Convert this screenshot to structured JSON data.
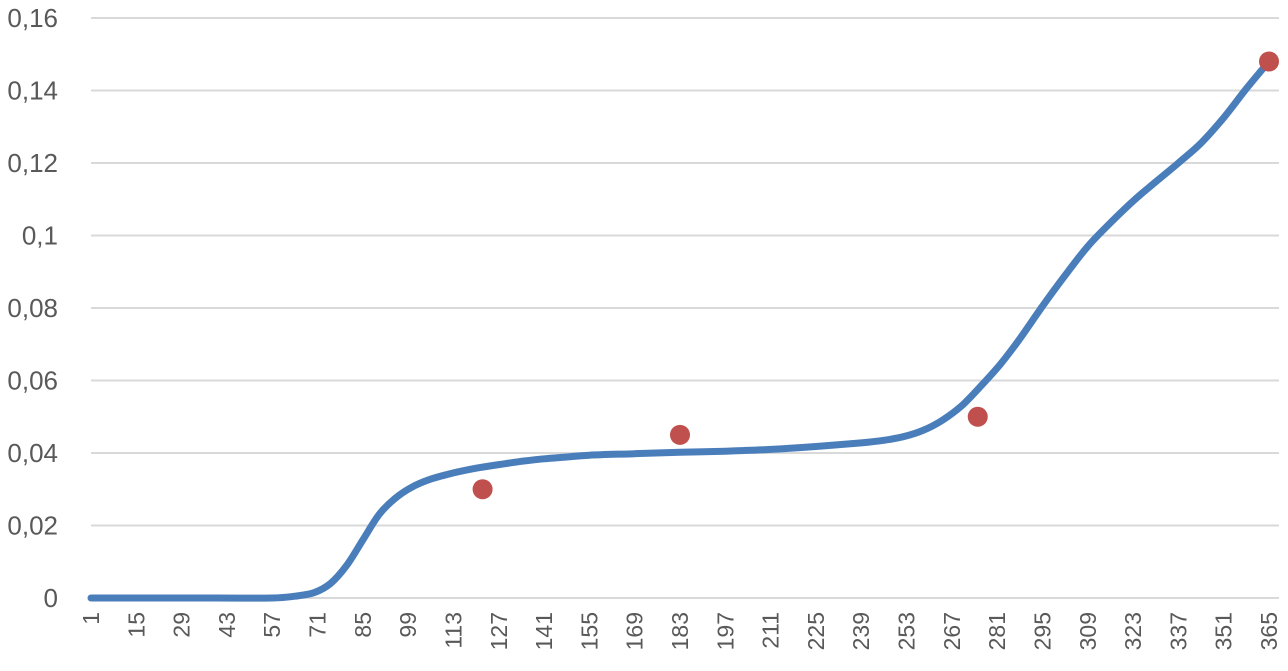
{
  "chart_data": {
    "type": "line",
    "title": "",
    "xlabel": "",
    "ylabel": "",
    "xlim": [
      1,
      365
    ],
    "ylim": [
      0,
      0.16
    ],
    "grid": true,
    "legend": "none",
    "y_ticks": [
      0,
      0.02,
      0.04,
      0.06,
      0.08,
      0.1,
      0.12,
      0.14,
      0.16
    ],
    "y_tick_labels": [
      "0",
      "0,02",
      "0,04",
      "0,06",
      "0,08",
      "0,1",
      "0,12",
      "0,14",
      "0,16"
    ],
    "x_ticks": [
      1,
      15,
      29,
      43,
      57,
      71,
      85,
      99,
      113,
      127,
      141,
      155,
      169,
      183,
      197,
      211,
      225,
      239,
      253,
      267,
      281,
      295,
      309,
      323,
      337,
      351,
      365
    ],
    "x_tick_labels": [
      "1",
      "15",
      "29",
      "43",
      "57",
      "71",
      "85",
      "99",
      "113",
      "127",
      "141",
      "155",
      "169",
      "183",
      "197",
      "211",
      "225",
      "239",
      "253",
      "267",
      "281",
      "295",
      "309",
      "323",
      "337",
      "351",
      "365"
    ],
    "series": [
      {
        "type": "line",
        "color": "#4a7ebb",
        "x": [
          1,
          20,
          40,
          57,
          64,
          70,
          75,
          80,
          85,
          90,
          95,
          100,
          106,
          113,
          120,
          127,
          134,
          141,
          148,
          155,
          169,
          183,
          197,
          211,
          225,
          239,
          246,
          252,
          258,
          264,
          270,
          276,
          282,
          288,
          295,
          302,
          309,
          316,
          323,
          330,
          337,
          344,
          351,
          358,
          365
        ],
        "y": [
          0,
          0,
          0,
          0,
          0.0005,
          0.0015,
          0.004,
          0.009,
          0.016,
          0.023,
          0.0275,
          0.0305,
          0.0328,
          0.0345,
          0.0358,
          0.0368,
          0.0377,
          0.0384,
          0.0389,
          0.0394,
          0.0398,
          0.0402,
          0.0405,
          0.041,
          0.0418,
          0.0428,
          0.0435,
          0.0445,
          0.0462,
          0.049,
          0.053,
          0.0585,
          0.0645,
          0.0715,
          0.0805,
          0.089,
          0.097,
          0.1035,
          0.1095,
          0.1148,
          0.12,
          0.1255,
          0.1325,
          0.1405,
          0.148
        ]
      },
      {
        "type": "scatter",
        "color": "#c0504d",
        "x": [
          122,
          183,
          275,
          365
        ],
        "y": [
          0.03,
          0.045,
          0.05,
          0.148
        ]
      }
    ]
  }
}
